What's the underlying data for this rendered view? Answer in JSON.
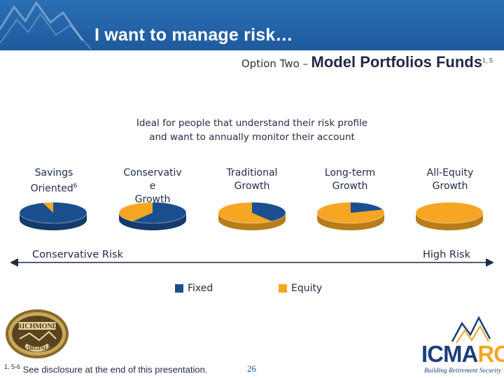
{
  "header": {
    "title": "I want to manage risk…",
    "subtitle_prefix": "Option Two –",
    "subtitle_main": "Model Portfolios Funds",
    "subtitle_sup": "1, 5"
  },
  "intro": {
    "line1": "Ideal for people that understand their risk profile",
    "line2": "and want to annually monitor their account"
  },
  "portfolios": [
    {
      "line1": "Savings",
      "line2": "Oriented",
      "sup": "6",
      "line3": "",
      "fixed_fraction": 0.95
    },
    {
      "line1": "Conservativ",
      "line2": "e",
      "sup": "",
      "line3": "Growth",
      "fixed_fraction": 0.6
    },
    {
      "line1": "Traditional",
      "line2": "Growth",
      "sup": "",
      "line3": "",
      "fixed_fraction": 0.4
    },
    {
      "line1": "Long-term",
      "line2": "Growth",
      "sup": "",
      "line3": "",
      "fixed_fraction": 0.2
    },
    {
      "line1": "All-Equity",
      "line2": "Growth",
      "sup": "",
      "line3": "",
      "fixed_fraction": 0.0
    }
  ],
  "risk_scale": {
    "low_label": "Conservative Risk",
    "high_label": "High Risk"
  },
  "legend": {
    "fixed_label": "Fixed",
    "equity_label": "Equity"
  },
  "footer": {
    "footnote_sup": "1, 5-6",
    "footnote_text": "See disclosure at the end of this presentation.",
    "page_number": "26"
  },
  "logos": {
    "seal_top_text": "RICHMOND",
    "seal_bottom_text": "VIRGINIA",
    "icma_text": "ICMA",
    "rc_text": "RC",
    "tagline": "Building Retirement Security"
  },
  "colors": {
    "banner": "#1e5a9c",
    "fixed": "#1a4f8f",
    "equity": "#f5a623",
    "icma_navy": "#1b3f7a"
  }
}
